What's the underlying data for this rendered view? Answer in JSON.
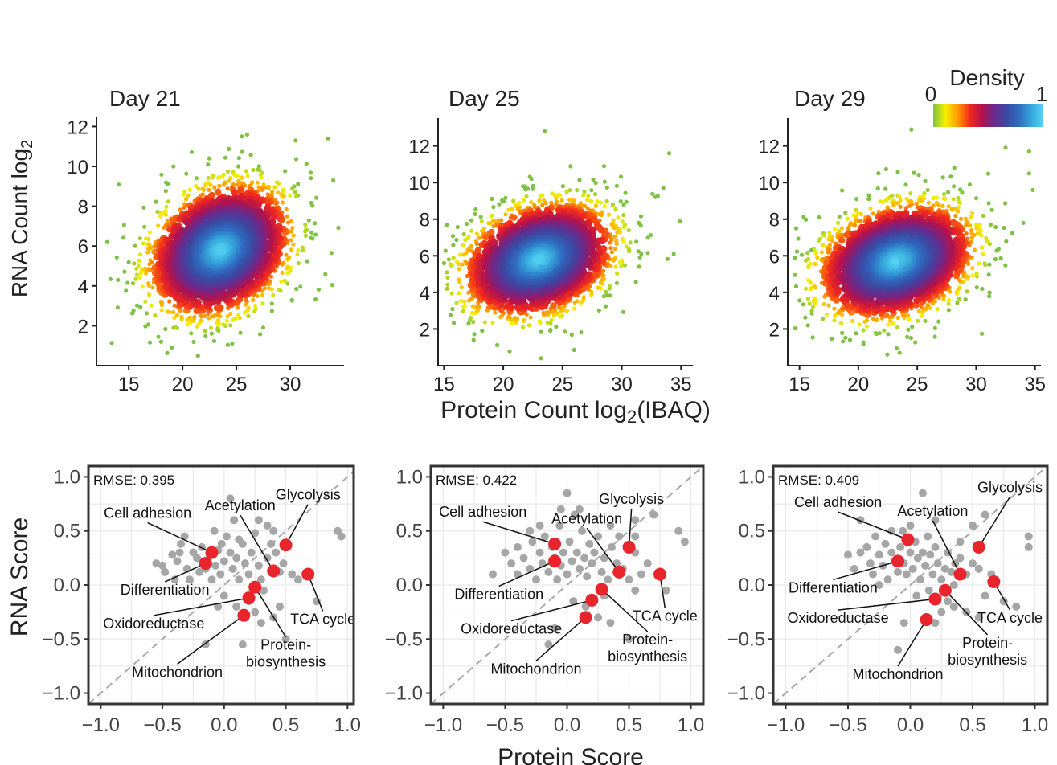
{
  "colors": {
    "density_ramp": [
      "#7dc243",
      "#f7f000",
      "#ff9a00",
      "#f2291e",
      "#b2124f",
      "#6a2a8c",
      "#3b4aa3",
      "#2f6cc0",
      "#36a7dc",
      "#55d3f4"
    ],
    "gray_point": "#a6a6a6",
    "red_point": "#e8242c",
    "diagonal": "#a9a9a9",
    "panel_bg": "#ffffff",
    "gridline": "#e9e9e9"
  },
  "density_legend": {
    "title": "Density",
    "min_label": "0",
    "max_label": "1"
  },
  "shared_labels": {
    "top_ylabel": "RNA Count log",
    "top_ylabel_sub": "2",
    "top_xlabel_pre": "Protein Count log",
    "top_xlabel_sub": "2",
    "top_xlabel_post": "(IBAQ)",
    "bottom_ylabel": "RNA Score",
    "bottom_xlabel": "Protein Score"
  },
  "chart_data": [
    {
      "type": "scatter",
      "style": "density",
      "title": "Day 21",
      "xlim": [
        12,
        35
      ],
      "ylim": [
        0,
        12.3
      ],
      "xticks": [
        15,
        20,
        25,
        30
      ],
      "yticks": [
        2,
        4,
        6,
        8,
        10,
        12
      ],
      "center": [
        23.5,
        5.8
      ],
      "spread": [
        3.2,
        1.6
      ],
      "outliers": [
        [
          13,
          6.2
        ],
        [
          14,
          4.3
        ],
        [
          26,
          11.6
        ],
        [
          25.5,
          11.5
        ],
        [
          33.5,
          11.4
        ],
        [
          34,
          9.3
        ],
        [
          18,
          1.2
        ],
        [
          19,
          0.9
        ],
        [
          30.5,
          11.3
        ]
      ]
    },
    {
      "type": "scatter",
      "style": "density",
      "title": "Day 25",
      "xlim": [
        14.5,
        36
      ],
      "ylim": [
        0,
        13.3
      ],
      "xticks": [
        15,
        20,
        25,
        30,
        35
      ],
      "yticks": [
        2,
        4,
        6,
        8,
        10,
        12
      ],
      "center": [
        23.0,
        5.8
      ],
      "spread": [
        3.1,
        1.5
      ],
      "outliers": [
        [
          23.5,
          12.8
        ],
        [
          33.5,
          9.7
        ],
        [
          34,
          11.6
        ],
        [
          17.5,
          1.4
        ],
        [
          28.5,
          10.9
        ]
      ]
    },
    {
      "type": "scatter",
      "style": "density",
      "title": "Day 29",
      "xlim": [
        14,
        35.5
      ],
      "ylim": [
        0,
        13.3
      ],
      "xticks": [
        15,
        20,
        25,
        30,
        35
      ],
      "yticks": [
        2,
        4,
        6,
        8,
        10,
        12
      ],
      "center": [
        23.2,
        5.7
      ],
      "spread": [
        3.2,
        1.5
      ],
      "outliers": [
        [
          24.5,
          12.9
        ],
        [
          34.5,
          11.7
        ],
        [
          34.5,
          10.5
        ],
        [
          23.5,
          0.7
        ],
        [
          16,
          6.3
        ],
        [
          32.5,
          11.9
        ]
      ]
    },
    {
      "type": "scatter",
      "style": "labeled",
      "rmse_label": "RMSE:",
      "rmse": "0.395",
      "xlim": [
        -1.1,
        1.05
      ],
      "ylim": [
        -1.1,
        1.1
      ],
      "xticks": [
        -1.0,
        -0.5,
        0.0,
        0.5,
        1.0
      ],
      "yticks": [
        -1.0,
        -0.5,
        0.0,
        0.5,
        1.0
      ],
      "xtick_labels": [
        "−1.0",
        "−0.5",
        "0.0",
        "0.5",
        "1.0"
      ],
      "ytick_labels": [
        "−1.0",
        "−0.5",
        "0.0",
        "0.5",
        "1.0"
      ],
      "gray_points": [
        [
          -0.55,
          0.2
        ],
        [
          -0.5,
          0.18
        ],
        [
          -0.42,
          0.28
        ],
        [
          -0.38,
          0.22
        ],
        [
          -0.35,
          0.38
        ],
        [
          -0.32,
          0.45
        ],
        [
          -0.3,
          0.15
        ],
        [
          -0.28,
          0.05
        ],
        [
          -0.25,
          0.3
        ],
        [
          -0.22,
          0.25
        ],
        [
          -0.2,
          0.12
        ],
        [
          -0.18,
          0.35
        ],
        [
          -0.17,
          0.22
        ],
        [
          -0.15,
          0.15
        ],
        [
          -0.12,
          0.28
        ],
        [
          -0.1,
          0.05
        ],
        [
          -0.08,
          0.5
        ],
        [
          -0.07,
          0.18
        ],
        [
          -0.05,
          0.32
        ],
        [
          -0.03,
          0.1
        ],
        [
          0.0,
          0.22
        ],
        [
          0.02,
          0.45
        ],
        [
          0.05,
          0.3
        ],
        [
          0.07,
          0.15
        ],
        [
          0.08,
          0.6
        ],
        [
          0.1,
          0.25
        ],
        [
          0.12,
          0.05
        ],
        [
          0.15,
          0.38
        ],
        [
          0.17,
          0.2
        ],
        [
          0.2,
          0.1
        ],
        [
          0.22,
          0.3
        ],
        [
          0.25,
          0.48
        ],
        [
          0.28,
          0.18
        ],
        [
          0.3,
          0.05
        ],
        [
          0.32,
          -0.05
        ],
        [
          0.35,
          0.25
        ],
        [
          0.38,
          0.38
        ],
        [
          0.42,
          0.3
        ],
        [
          0.45,
          0.12
        ],
        [
          0.48,
          0.2
        ],
        [
          0.5,
          0.35
        ],
        [
          0.55,
          0.1
        ],
        [
          0.6,
          0.05
        ],
        [
          0.2,
          -0.15
        ],
        [
          0.25,
          -0.25
        ],
        [
          0.3,
          -0.35
        ],
        [
          0.45,
          -0.2
        ],
        [
          0.5,
          -0.5
        ],
        [
          0.15,
          -0.55
        ],
        [
          -0.15,
          -0.55
        ],
        [
          0.05,
          0.8
        ],
        [
          0.0,
          -0.1
        ],
        [
          -0.05,
          -0.2
        ],
        [
          0.4,
          -0.3
        ],
        [
          0.75,
          -0.15
        ],
        [
          0.92,
          0.5
        ],
        [
          0.95,
          0.45
        ],
        [
          -0.48,
          0.12
        ],
        [
          -0.4,
          0.05
        ],
        [
          -0.36,
          0.3
        ],
        [
          0.1,
          -0.2
        ],
        [
          0.35,
          0.55
        ],
        [
          -0.02,
          0.38
        ],
        [
          0.12,
          0.42
        ],
        [
          0.28,
          0.6
        ],
        [
          0.4,
          0.5
        ]
      ],
      "red_points": [
        {
          "label": "Cell adhesion",
          "x": -0.1,
          "y": 0.3,
          "lx": -0.62,
          "ly": 0.62,
          "align": "middle"
        },
        {
          "label": "Acetylation",
          "x": 0.4,
          "y": 0.13,
          "lx": 0.13,
          "ly": 0.69,
          "align": "middle"
        },
        {
          "label": "Glycolysis",
          "x": 0.5,
          "y": 0.37,
          "lx": 0.68,
          "ly": 0.79,
          "align": "middle"
        },
        {
          "label": "Differentiation",
          "x": -0.15,
          "y": 0.2,
          "lx": -0.48,
          "ly": -0.09,
          "align": "middle"
        },
        {
          "label": "TCA cycle",
          "x": 0.68,
          "y": 0.1,
          "lx": 0.8,
          "ly": -0.36,
          "align": "middle"
        },
        {
          "label": "Oxidoreductase",
          "x": 0.2,
          "y": -0.12,
          "lx": -0.57,
          "ly": -0.4,
          "align": "middle"
        },
        {
          "label": "Protein-\nbiosynthesis",
          "x": 0.25,
          "y": -0.02,
          "lx": 0.5,
          "ly": -0.6,
          "align": "middle"
        },
        {
          "label": "Mitochondrion",
          "x": 0.16,
          "y": -0.28,
          "lx": -0.38,
          "ly": -0.85,
          "align": "middle"
        }
      ]
    },
    {
      "type": "scatter",
      "style": "labeled",
      "rmse_label": "RMSE:",
      "rmse": "0.422",
      "xlim": [
        -1.1,
        1.1
      ],
      "ylim": [
        -1.1,
        1.1
      ],
      "xticks": [
        -1.0,
        -0.5,
        0.0,
        0.5,
        1.0
      ],
      "yticks": [
        -1.0,
        -0.5,
        0.0,
        0.5,
        1.0
      ],
      "xtick_labels": [
        "−1.0",
        "−0.5",
        "0.0",
        "0.5",
        "1.0"
      ],
      "ytick_labels": [
        "−1.0",
        "−0.5",
        "0.0",
        "0.5",
        "1.0"
      ],
      "gray_points": [
        [
          -0.6,
          0.1
        ],
        [
          -0.5,
          0.3
        ],
        [
          -0.45,
          0.2
        ],
        [
          -0.4,
          0.35
        ],
        [
          -0.35,
          0.25
        ],
        [
          -0.3,
          0.15
        ],
        [
          -0.28,
          0.4
        ],
        [
          -0.25,
          0.05
        ],
        [
          -0.22,
          0.3
        ],
        [
          -0.2,
          0.2
        ],
        [
          -0.18,
          0.45
        ],
        [
          -0.15,
          0.12
        ],
        [
          -0.12,
          0.35
        ],
        [
          -0.1,
          0.25
        ],
        [
          -0.08,
          0.05
        ],
        [
          -0.06,
          0.55
        ],
        [
          -0.05,
          0.18
        ],
        [
          -0.03,
          0.3
        ],
        [
          0.0,
          0.1
        ],
        [
          0.02,
          0.4
        ],
        [
          0.04,
          0.22
        ],
        [
          0.06,
          0.65
        ],
        [
          0.08,
          0.3
        ],
        [
          0.1,
          0.15
        ],
        [
          0.12,
          0.5
        ],
        [
          0.14,
          0.25
        ],
        [
          0.16,
          0.08
        ],
        [
          0.18,
          0.38
        ],
        [
          0.2,
          0.2
        ],
        [
          0.22,
          0.3
        ],
        [
          0.25,
          0.45
        ],
        [
          0.28,
          0.12
        ],
        [
          0.3,
          0.25
        ],
        [
          0.33,
          0.05
        ],
        [
          0.36,
          0.35
        ],
        [
          0.4,
          0.2
        ],
        [
          0.45,
          0.15
        ],
        [
          0.5,
          0.05
        ],
        [
          0.55,
          0.3
        ],
        [
          0.6,
          0.1
        ],
        [
          0.65,
          0.2
        ],
        [
          0.55,
          -0.05
        ],
        [
          0.3,
          -0.1
        ],
        [
          0.25,
          -0.3
        ],
        [
          0.15,
          -0.2
        ],
        [
          0.35,
          -0.35
        ],
        [
          -0.1,
          -0.4
        ],
        [
          -0.15,
          -0.55
        ],
        [
          0.5,
          -0.5
        ],
        [
          0.0,
          0.85
        ],
        [
          -0.05,
          0.7
        ],
        [
          0.1,
          0.7
        ],
        [
          0.9,
          0.5
        ],
        [
          0.95,
          0.4
        ],
        [
          -0.3,
          0.5
        ],
        [
          -0.4,
          0.1
        ],
        [
          0.35,
          0.55
        ],
        [
          0.55,
          0.6
        ],
        [
          0.7,
          0.65
        ],
        [
          0.55,
          0.45
        ],
        [
          -0.22,
          0.55
        ],
        [
          0.05,
          -0.15
        ],
        [
          0.42,
          0.45
        ],
        [
          0.8,
          -0.05
        ]
      ],
      "red_points": [
        {
          "label": "Cell adhesion",
          "x": -0.1,
          "y": 0.38,
          "lx": -0.68,
          "ly": 0.63,
          "align": "middle"
        },
        {
          "label": "Acetylation",
          "x": 0.42,
          "y": 0.12,
          "lx": 0.16,
          "ly": 0.57,
          "align": "middle"
        },
        {
          "label": "Glycolysis",
          "x": 0.5,
          "y": 0.35,
          "lx": 0.52,
          "ly": 0.75,
          "align": "middle"
        },
        {
          "label": "Differentiation",
          "x": -0.1,
          "y": 0.22,
          "lx": -0.55,
          "ly": -0.13,
          "align": "middle"
        },
        {
          "label": "TCA cycle",
          "x": 0.75,
          "y": 0.1,
          "lx": 0.79,
          "ly": -0.33,
          "align": "middle"
        },
        {
          "label": "Oxidoreductase",
          "x": 0.2,
          "y": -0.14,
          "lx": -0.45,
          "ly": -0.45,
          "align": "middle"
        },
        {
          "label": "Protein-\nbiosynthesis",
          "x": 0.28,
          "y": -0.04,
          "lx": 0.65,
          "ly": -0.55,
          "align": "middle"
        },
        {
          "label": "Mitochondrion",
          "x": 0.15,
          "y": -0.3,
          "lx": -0.25,
          "ly": -0.82,
          "align": "middle"
        }
      ]
    },
    {
      "type": "scatter",
      "style": "labeled",
      "rmse_label": "RMSE:",
      "rmse": "0.409",
      "xlim": [
        -1.1,
        1.1
      ],
      "ylim": [
        -1.1,
        1.1
      ],
      "xticks": [
        -1.0,
        -0.5,
        0.0,
        0.5,
        1.0
      ],
      "yticks": [
        -1.0,
        -0.5,
        0.0,
        0.5,
        1.0
      ],
      "xtick_labels": [
        "−1.0",
        "−0.5",
        "0.0",
        "0.5",
        "1.0"
      ],
      "ytick_labels": [
        "−1.0",
        "−0.5",
        "0.0",
        "0.5",
        "1.0"
      ],
      "gray_points": [
        [
          -0.5,
          0.28
        ],
        [
          -0.45,
          0.15
        ],
        [
          -0.4,
          0.3
        ],
        [
          -0.35,
          0.35
        ],
        [
          -0.32,
          0.2
        ],
        [
          -0.3,
          0.1
        ],
        [
          -0.28,
          0.45
        ],
        [
          -0.25,
          0.28
        ],
        [
          -0.22,
          0.18
        ],
        [
          -0.2,
          0.38
        ],
        [
          -0.18,
          0.05
        ],
        [
          -0.15,
          0.3
        ],
        [
          -0.12,
          0.22
        ],
        [
          -0.1,
          0.12
        ],
        [
          -0.08,
          0.35
        ],
        [
          -0.06,
          0.5
        ],
        [
          -0.05,
          0.2
        ],
        [
          -0.03,
          0.1
        ],
        [
          0.0,
          0.3
        ],
        [
          0.02,
          0.15
        ],
        [
          0.04,
          0.4
        ],
        [
          0.06,
          0.25
        ],
        [
          0.08,
          0.05
        ],
        [
          0.1,
          0.3
        ],
        [
          0.12,
          0.18
        ],
        [
          0.14,
          0.45
        ],
        [
          0.16,
          0.28
        ],
        [
          0.18,
          0.1
        ],
        [
          0.2,
          0.35
        ],
        [
          0.22,
          0.2
        ],
        [
          0.25,
          0.05
        ],
        [
          0.28,
          0.15
        ],
        [
          0.3,
          0.3
        ],
        [
          0.33,
          0.12
        ],
        [
          0.36,
          0.2
        ],
        [
          0.4,
          0.25
        ],
        [
          0.45,
          0.1
        ],
        [
          0.5,
          0.2
        ],
        [
          0.55,
          0.15
        ],
        [
          0.3,
          -0.15
        ],
        [
          0.25,
          -0.25
        ],
        [
          0.35,
          -0.2
        ],
        [
          0.45,
          -0.25
        ],
        [
          0.55,
          -0.3
        ],
        [
          0.6,
          -0.1
        ],
        [
          0.65,
          0.1
        ],
        [
          0.75,
          -0.15
        ],
        [
          0.85,
          -0.2
        ],
        [
          0.95,
          0.45
        ],
        [
          0.95,
          0.35
        ],
        [
          0.1,
          0.85
        ],
        [
          -0.4,
          0.6
        ],
        [
          -0.1,
          -0.6
        ],
        [
          -0.05,
          -0.35
        ],
        [
          0.2,
          -0.35
        ],
        [
          0.6,
          0.65
        ],
        [
          0.0,
          0.55
        ],
        [
          0.2,
          0.6
        ],
        [
          0.5,
          0.55
        ],
        [
          -0.15,
          0.5
        ],
        [
          0.05,
          -0.1
        ],
        [
          0.4,
          0.4
        ],
        [
          0.15,
          -0.05
        ],
        [
          -0.25,
          0.0
        ],
        [
          0.35,
          0.0
        ]
      ],
      "red_points": [
        {
          "label": "Cell adhesion",
          "x": -0.02,
          "y": 0.42,
          "lx": -0.58,
          "ly": 0.72,
          "align": "middle"
        },
        {
          "label": "Acetylation",
          "x": 0.4,
          "y": 0.1,
          "lx": 0.18,
          "ly": 0.64,
          "align": "middle"
        },
        {
          "label": "Glycolysis",
          "x": 0.55,
          "y": 0.35,
          "lx": 0.8,
          "ly": 0.86,
          "align": "middle"
        },
        {
          "label": "Differentiation",
          "x": -0.1,
          "y": 0.22,
          "lx": -0.62,
          "ly": -0.07,
          "align": "middle"
        },
        {
          "label": "TCA cycle",
          "x": 0.67,
          "y": 0.03,
          "lx": 0.8,
          "ly": -0.35,
          "align": "middle"
        },
        {
          "label": "Oxidoreductase",
          "x": 0.2,
          "y": -0.13,
          "lx": -0.58,
          "ly": -0.35,
          "align": "middle"
        },
        {
          "label": "Protein-\nbiosynthesis",
          "x": 0.28,
          "y": -0.05,
          "lx": 0.62,
          "ly": -0.58,
          "align": "middle"
        },
        {
          "label": "Mitochondrion",
          "x": 0.13,
          "y": -0.32,
          "lx": -0.1,
          "ly": -0.87,
          "align": "middle"
        }
      ]
    }
  ]
}
